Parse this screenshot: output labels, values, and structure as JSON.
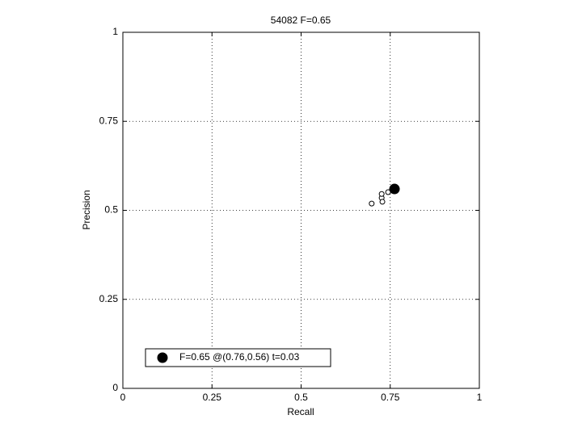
{
  "chart_data": {
    "type": "scatter",
    "title": "54082 F=0.65",
    "x_label": "Recall",
    "y_label": "Precision",
    "xlim": [
      0,
      1
    ],
    "ylim": [
      0,
      1
    ],
    "xticks": [
      0,
      0.25,
      0.5,
      0.75,
      1
    ],
    "yticks": [
      0,
      0.25,
      0.5,
      0.75,
      1
    ],
    "grid": true,
    "legend": "lower left",
    "series": [
      {
        "color": "#000000",
        "marker": "open",
        "x": [
          0.698,
          0.726,
          0.726,
          0.728,
          0.744,
          0.755
        ],
        "values": [
          0.519,
          0.535,
          0.546,
          0.524,
          0.551,
          0.558
        ]
      },
      {
        "name": "F=0.65 @(0.76,0.56) t=0.03",
        "color": "#000000",
        "marker": "filled",
        "x": [
          0.762
        ],
        "values": [
          0.56
        ]
      }
    ]
  }
}
